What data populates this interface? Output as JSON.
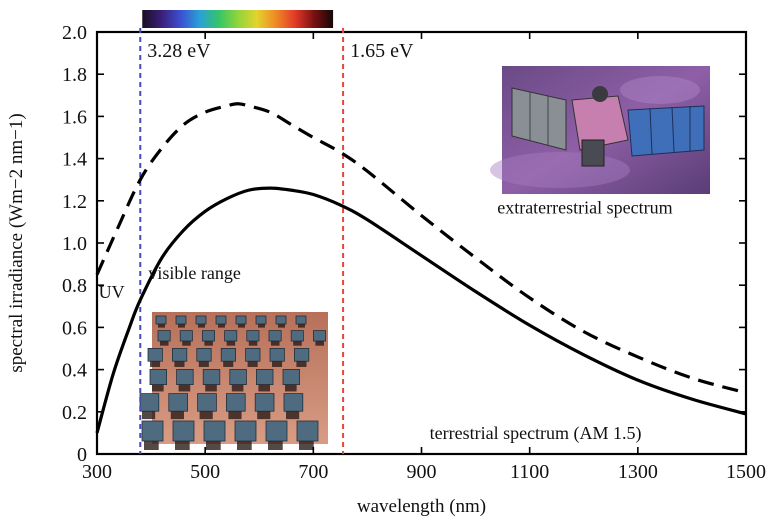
{
  "chart_data": {
    "type": "line",
    "xlabel": "wavelength (nm)",
    "ylabel": "spectral irradiance (Wm−2 nm−1)",
    "xlim": [
      300,
      1500
    ],
    "ylim": [
      0,
      2.0
    ],
    "x_ticks": [
      300,
      500,
      700,
      900,
      1100,
      1300,
      1500
    ],
    "x_tick_labels": [
      "300",
      "500",
      "700",
      "900",
      "1100",
      "1300",
      "1500"
    ],
    "y_ticks": [
      0,
      0.2,
      0.4,
      0.6,
      0.8,
      1.0,
      1.2,
      1.4,
      1.6,
      1.8,
      2.0
    ],
    "y_tick_labels": [
      "0",
      "0.2",
      "0.4",
      "0.6",
      "0.8",
      "1.0",
      "1.2",
      "1.4",
      "1.6",
      "1.8",
      "2.0"
    ],
    "grid": false,
    "series": [
      {
        "style": "dashed",
        "color": "#000000",
        "x": [
          300,
          340,
          380,
          420,
          460,
          500,
          540,
          560,
          580,
          620,
          660,
          700,
          750,
          800,
          900,
          1000,
          1100,
          1200,
          1300,
          1400,
          1500
        ],
        "y": [
          0.85,
          1.08,
          1.3,
          1.45,
          1.56,
          1.62,
          1.65,
          1.66,
          1.65,
          1.62,
          1.56,
          1.5,
          1.43,
          1.34,
          1.13,
          0.93,
          0.74,
          0.58,
          0.46,
          0.36,
          0.29
        ]
      },
      {
        "style": "solid",
        "color": "#000000",
        "x": [
          300,
          330,
          360,
          380,
          420,
          460,
          500,
          540,
          580,
          620,
          660,
          700,
          750,
          800,
          900,
          1000,
          1100,
          1200,
          1300,
          1400,
          1500
        ],
        "y": [
          0.1,
          0.38,
          0.6,
          0.73,
          0.93,
          1.06,
          1.15,
          1.21,
          1.25,
          1.26,
          1.25,
          1.23,
          1.18,
          1.11,
          0.94,
          0.77,
          0.61,
          0.47,
          0.35,
          0.26,
          0.19
        ]
      }
    ],
    "markers": [
      {
        "x": 380,
        "color": "#4a4ab8",
        "label": "3.28 eV"
      },
      {
        "x": 755,
        "color": "#e8453c",
        "label": "1.65 eV"
      }
    ],
    "annotations": [
      {
        "text": "UV",
        "x": 303,
        "y": 0.74
      },
      {
        "text": "visible range",
        "x": 395,
        "y": 0.83
      },
      {
        "text": "extraterrestrial spectrum",
        "x": 1040,
        "y": 1.14
      },
      {
        "text": "terrestrial spectrum (AM 1.5)",
        "x": 915,
        "y": 0.07
      }
    ],
    "spectrum_bar": {
      "x_range": [
        380,
        755
      ],
      "colors": [
        "#1a0f22",
        "#3a1f7a",
        "#3b4fd0",
        "#2aa0d8",
        "#34c46a",
        "#8fd53a",
        "#e3d32e",
        "#ef8a24",
        "#e23a2a",
        "#7a1010",
        "#140808"
      ]
    }
  }
}
